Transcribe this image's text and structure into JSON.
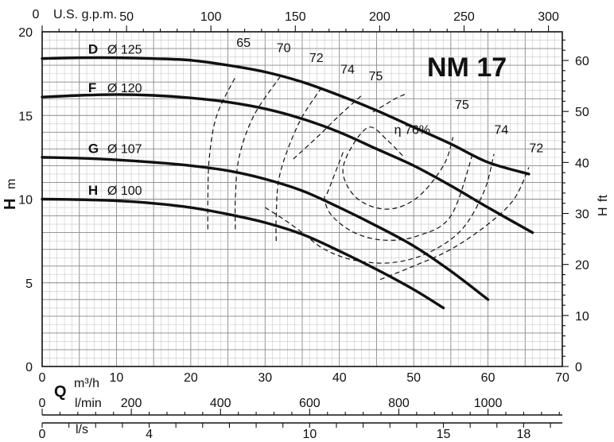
{
  "chart_data": {
    "type": "line",
    "title": "NM 17",
    "x": {
      "label": "Q",
      "unit": "m³/h",
      "range": [
        0,
        70
      ],
      "ticks": [
        0,
        10,
        20,
        30,
        40,
        50,
        60,
        70
      ]
    },
    "y_left": {
      "label": "H",
      "unit": "m",
      "range": [
        0,
        20
      ],
      "ticks": [
        0,
        5,
        10,
        15,
        20
      ]
    },
    "y_right": {
      "label": "H",
      "unit": "ft",
      "ticks": [
        0,
        10,
        20,
        30,
        40,
        50,
        60
      ]
    },
    "x_top": {
      "label": "U.S. g.p.m.",
      "ticks": [
        0,
        50,
        100,
        150,
        200,
        250,
        300
      ]
    },
    "x_lmin": {
      "unit": "l/min",
      "ticks": [
        0,
        200,
        400,
        600,
        800,
        1000
      ]
    },
    "x_ls": {
      "unit": "l/s",
      "ticks": [
        0,
        4,
        10,
        15,
        18
      ]
    },
    "grid": true,
    "series": [
      {
        "name": "D",
        "diameter": "Ø 125",
        "x": [
          0,
          5,
          10,
          15,
          20,
          25,
          30,
          35,
          40,
          45,
          50,
          55,
          60,
          65.5
        ],
        "y": [
          18.4,
          18.45,
          18.45,
          18.4,
          18.3,
          18.0,
          17.6,
          17.0,
          16.2,
          15.3,
          14.3,
          13.3,
          12.2,
          11.5
        ]
      },
      {
        "name": "F",
        "diameter": "Ø 120",
        "x": [
          0,
          5,
          10,
          15,
          20,
          25,
          30,
          35,
          40,
          45,
          50,
          55,
          60,
          66
        ],
        "y": [
          16.1,
          16.2,
          16.25,
          16.2,
          16.05,
          15.8,
          15.4,
          14.8,
          14.0,
          13.0,
          12.0,
          10.8,
          9.5,
          8.0
        ]
      },
      {
        "name": "G",
        "diameter": "Ø 107",
        "x": [
          0,
          5,
          10,
          15,
          20,
          25,
          30,
          35,
          40,
          45,
          50,
          55,
          60
        ],
        "y": [
          12.5,
          12.45,
          12.35,
          12.2,
          12.0,
          11.7,
          11.2,
          10.5,
          9.5,
          8.4,
          7.2,
          5.7,
          4.0
        ]
      },
      {
        "name": "H",
        "diameter": "Ø 100",
        "x": [
          0,
          5,
          10,
          15,
          20,
          25,
          30,
          35,
          40,
          45,
          50,
          54
        ],
        "y": [
          10.0,
          9.97,
          9.9,
          9.75,
          9.5,
          9.1,
          8.6,
          7.9,
          6.9,
          5.8,
          4.6,
          3.5
        ]
      }
    ],
    "efficiency": [
      {
        "label": "65",
        "x": [
          22.3,
          22.3,
          22.5,
          23.5,
          26.0
        ],
        "y": [
          8.2,
          10.0,
          12.5,
          15.0,
          17.3
        ]
      },
      {
        "label": "70",
        "x": [
          26.0,
          26.0,
          26.5,
          28.5,
          32.0
        ],
        "y": [
          8.2,
          10.0,
          12.5,
          15.0,
          17.3
        ]
      },
      {
        "label": "72",
        "x": [
          31.5,
          31.5,
          32.0,
          34.5,
          37.5
        ],
        "y": [
          7.5,
          9.0,
          11.5,
          14.5,
          16.6
        ]
      },
      {
        "label": "74",
        "x": [
          33.8,
          37.0,
          40.0,
          43.0
        ],
        "y": [
          12.4,
          13.7,
          15.0,
          16.2
        ]
      },
      {
        "label": "75",
        "x": [
          44.5,
          46.0,
          47.5,
          49.0
        ],
        "y": [
          15.2,
          15.6,
          16.0,
          16.3
        ]
      },
      {
        "label": "76%",
        "x": [
          48.5,
          46.5,
          44.0,
          41.5,
          40.5,
          42.5,
          46.5,
          50.5,
          54.0,
          55.3
        ],
        "y": [
          12.6,
          13.5,
          14.3,
          13.0,
          11.5,
          10.0,
          9.4,
          10.1,
          12.0,
          13.7
        ]
      },
      {
        "label": "75",
        "x": [
          40.5,
          38.5,
          38.0,
          39.0,
          42.0,
          46.0,
          50.5,
          55.0,
          58.0
        ],
        "y": [
          12.8,
          10.5,
          10.0,
          9.0,
          8.0,
          7.55,
          7.8,
          9.0,
          12.8
        ]
      },
      {
        "label": "74",
        "x": [
          30.0,
          32.5,
          35.0,
          38.0,
          42.0,
          47.0,
          52.0,
          56.5,
          59.5,
          60.8
        ],
        "y": [
          9.5,
          8.8,
          8.0,
          7.0,
          6.35,
          6.2,
          6.8,
          8.2,
          10.5,
          12.7
        ]
      },
      {
        "label": "72",
        "x": [
          45.5,
          50.0,
          55.0,
          60.0,
          63.5,
          65.5
        ],
        "y": [
          5.2,
          6.0,
          7.0,
          8.5,
          10.0,
          11.9
        ]
      }
    ],
    "efficiency_labels": [
      {
        "text": "65",
        "x": 27.1,
        "y": 19.1
      },
      {
        "text": "70",
        "x": 32.5,
        "y": 18.8
      },
      {
        "text": "72",
        "x": 36.9,
        "y": 18.2
      },
      {
        "text": "74",
        "x": 41.1,
        "y": 17.5
      },
      {
        "text": "75",
        "x": 44.9,
        "y": 17.1
      },
      {
        "text": "η 76%",
        "x": 49.8,
        "y": 13.9
      },
      {
        "text": "75",
        "x": 56.5,
        "y": 15.4
      },
      {
        "text": "74",
        "x": 61.8,
        "y": 13.9
      },
      {
        "text": "72",
        "x": 66.5,
        "y": 12.8
      }
    ],
    "curve_labels": [
      {
        "name": "D",
        "diameter": "Ø 125",
        "x": 6.2,
        "y": 18.7
      },
      {
        "name": "F",
        "diameter": "Ø 120",
        "x": 6.2,
        "y": 16.4
      },
      {
        "name": "G",
        "diameter": "Ø 107",
        "x": 6.2,
        "y": 12.75
      },
      {
        "name": "H",
        "diameter": "Ø 100",
        "x": 6.2,
        "y": 10.25
      }
    ]
  },
  "labels": {
    "title": "NM 17",
    "gpm_label": "U.S. g.p.m.",
    "h_left": "H",
    "h_left_unit": "m",
    "h_right": "H",
    "h_right_unit": "ft",
    "q_label": "Q",
    "q_unit": "m³/h",
    "lmin_unit": "l/min",
    "ls_unit": "l/s"
  }
}
